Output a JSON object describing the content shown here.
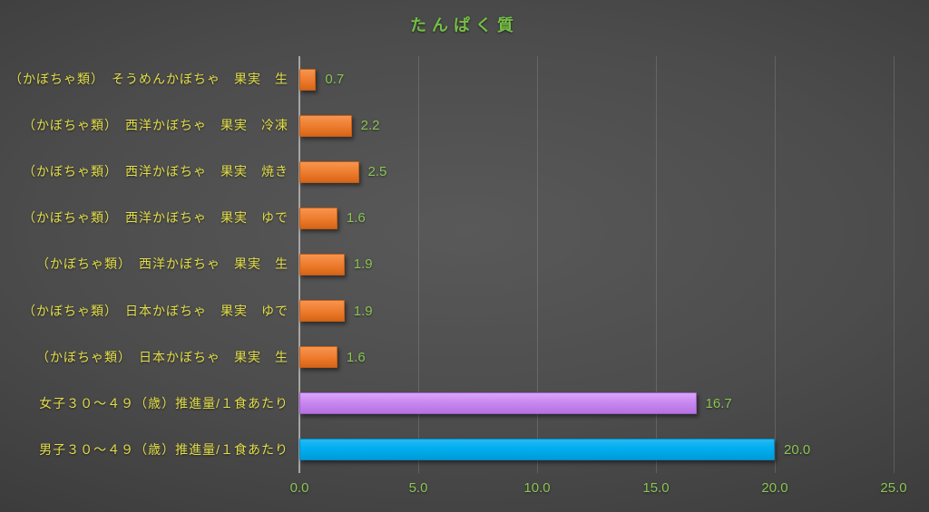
{
  "title": "たんぱく質",
  "colors": {
    "background_center": "#595959",
    "background_edge": "#282828",
    "title_text": "#74bf44",
    "category_label_text": "#e3de49",
    "value_label_text": "#8ac554",
    "axis_tick_text": "#8ac554",
    "gridline": "#5e5e5e",
    "axis_line": "#a6a6a6",
    "bar_orange": "#ed7d31",
    "bar_purple": "#c988f1",
    "bar_blue": "#00aeef"
  },
  "chart_data": {
    "type": "bar",
    "orientation": "horizontal",
    "title": "たんぱく質",
    "categories": [
      "（かぼちゃ類）　そうめんかぼちゃ　果実　生",
      "（かぼちゃ類）　西洋かぼちゃ　果実　冷凍",
      "（かぼちゃ類）　西洋かぼちゃ　果実　焼き",
      "（かぼちゃ類）　西洋かぼちゃ　果実　ゆで",
      "（かぼちゃ類）　西洋かぼちゃ　果実　生",
      "（かぼちゃ類）　日本かぼちゃ　果実　ゆで",
      "（かぼちゃ類）　日本かぼちゃ　果実　生",
      "女子３０～４９（歳）推進量/１食あたり",
      "男子３０～４９（歳）推進量/１食あたり"
    ],
    "values": [
      0.7,
      2.2,
      2.5,
      1.6,
      1.9,
      1.9,
      1.6,
      16.7,
      20.0
    ],
    "value_labels": [
      "0.7",
      "2.2",
      "2.5",
      "1.6",
      "1.9",
      "1.9",
      "1.6",
      "16.7",
      "20.0"
    ],
    "bar_colors": [
      "orange",
      "orange",
      "orange",
      "orange",
      "orange",
      "orange",
      "orange",
      "purple",
      "blue"
    ],
    "x_ticks": [
      "0.0",
      "5.0",
      "10.0",
      "15.0",
      "20.0",
      "25.0"
    ],
    "x_tick_values": [
      0,
      5,
      10,
      15,
      20,
      25
    ],
    "xlim": [
      0,
      25
    ],
    "xlabel": "",
    "ylabel": "",
    "grid": "vertical",
    "legend": "none"
  }
}
